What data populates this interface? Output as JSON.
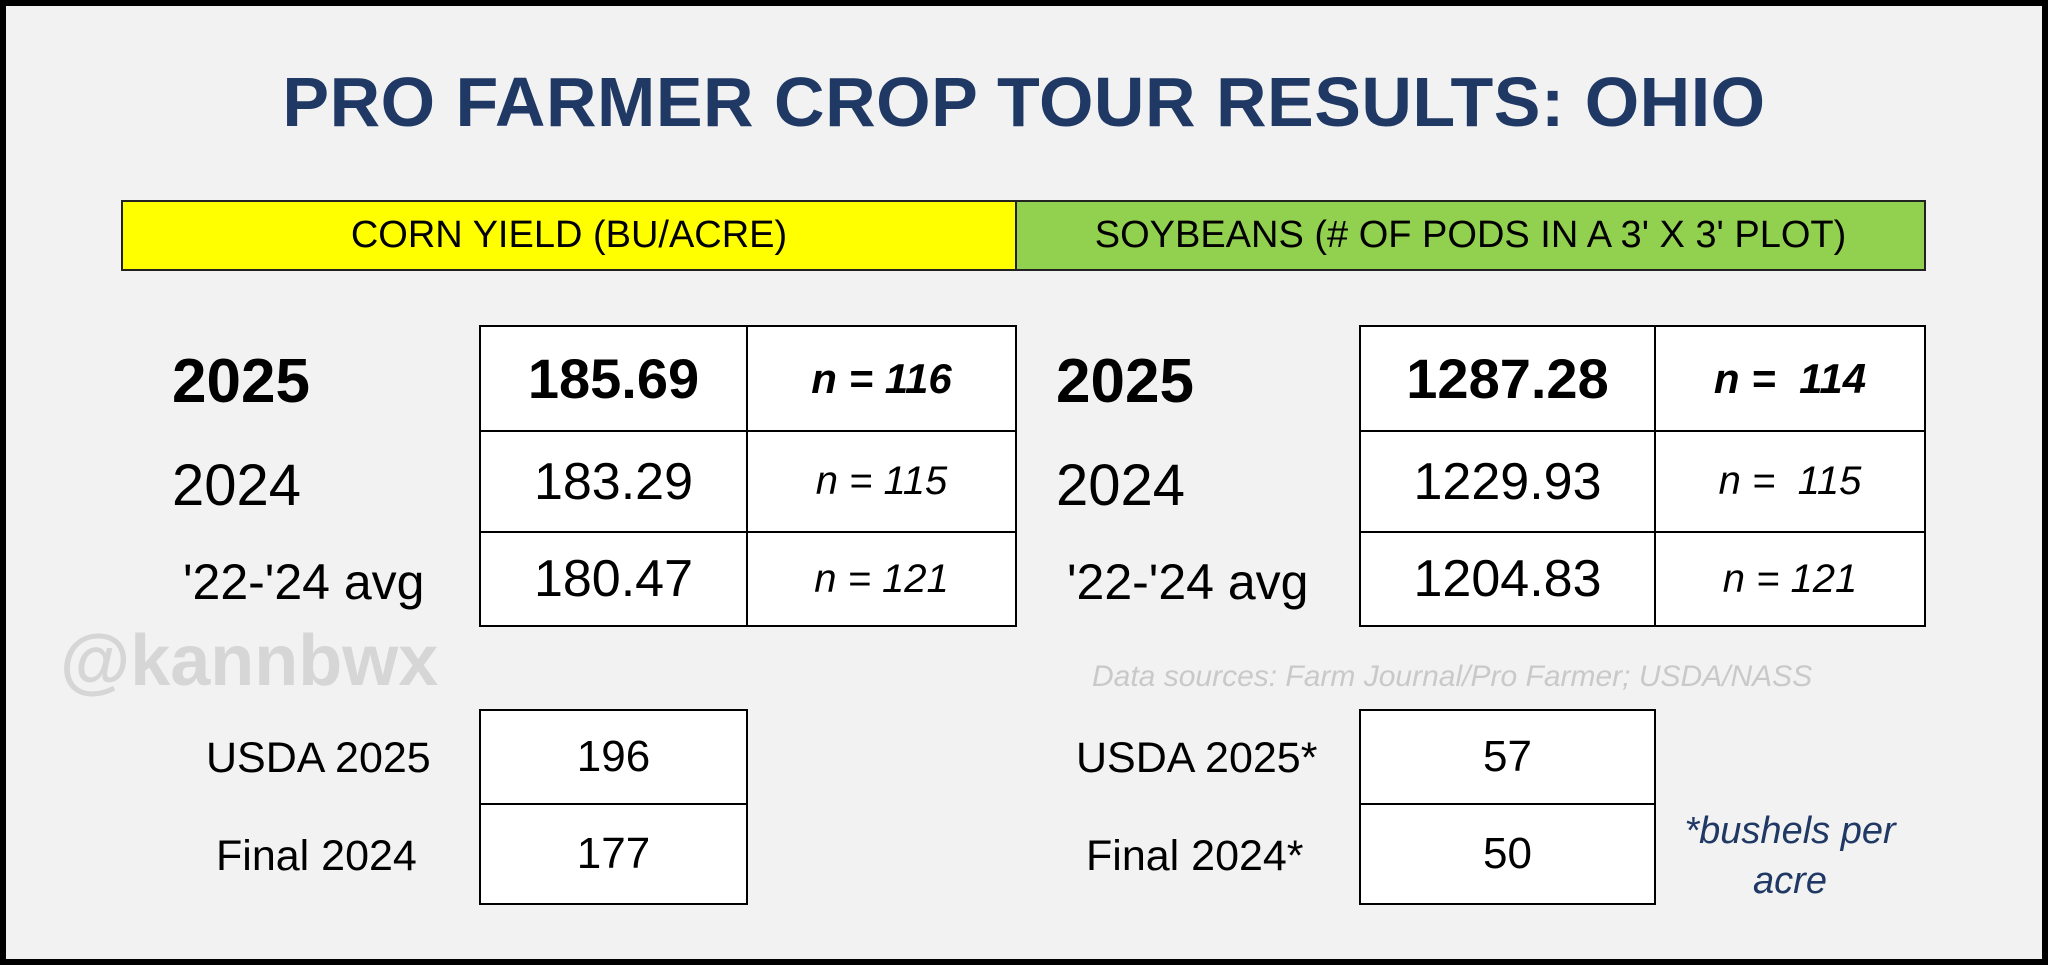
{
  "title": "PRO FARMER CROP TOUR RESULTS: OHIO",
  "corn": {
    "header": "CORN YIELD (BU/ACRE)",
    "rows": [
      {
        "label": "2025",
        "value": "185.69",
        "n": "n = 116"
      },
      {
        "label": "2024",
        "value": "183.29",
        "n": "n = 115"
      },
      {
        "label": "'22-'24 avg",
        "value": "180.47",
        "n": "n = 121"
      }
    ],
    "usda": [
      {
        "label": "USDA 2025",
        "value": "196"
      },
      {
        "label": "Final 2024",
        "value": "177"
      }
    ]
  },
  "soybeans": {
    "header": "SOYBEANS (# OF PODS IN A 3' X 3' PLOT)",
    "rows": [
      {
        "label": "2025",
        "value": "1287.28",
        "n": "n =  114"
      },
      {
        "label": "2024",
        "value": "1229.93",
        "n": "n =  115"
      },
      {
        "label": "'22-'24 avg",
        "value": "1204.83",
        "n": "n = 121"
      }
    ],
    "usda": [
      {
        "label": "USDA 2025*",
        "value": "57"
      },
      {
        "label": "Final 2024*",
        "value": "50"
      }
    ]
  },
  "watermark": "@kannbwx",
  "sources": "Data sources: Farm Journal/Pro Farmer; USDA/NASS",
  "footnote": "*bushels per acre",
  "colors": {
    "title": "#1f3864",
    "corn_banner": "#ffff00",
    "soy_banner": "#92d050",
    "footnote": "#1f3864"
  }
}
